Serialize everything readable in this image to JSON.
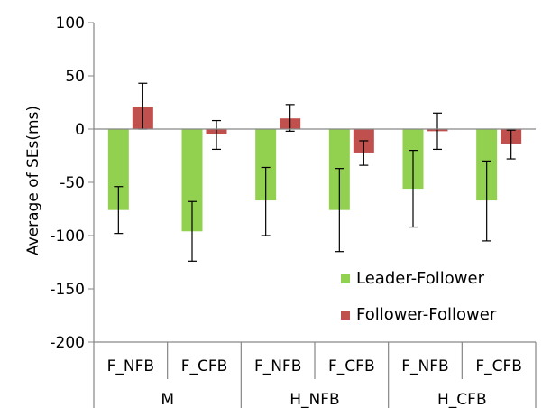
{
  "chart_data": {
    "type": "bar",
    "ylabel": "Average of SEs(ms)",
    "ylim": [
      -200,
      100
    ],
    "ytick_step": 50,
    "grid": false,
    "legend_position": "bottom-right",
    "categories": [
      "F_NFB",
      "F_CFB",
      "F_NFB",
      "F_CFB",
      "F_NFB",
      "F_CFB"
    ],
    "groups": [
      "M",
      "H_NFB",
      "H_CFB"
    ],
    "series": [
      {
        "name": "Leader-Follower",
        "color": "#92d050",
        "values": [
          -76,
          -96,
          -67,
          -76,
          -56,
          -67
        ],
        "error_low": [
          -98,
          -124,
          -100,
          -115,
          -92,
          -105
        ],
        "error_high": [
          -54,
          -68,
          -36,
          -37,
          -20,
          -30
        ]
      },
      {
        "name": "Follower-Follower",
        "color": "#c0504d",
        "values": [
          21,
          -5,
          10,
          -22,
          -2,
          -14
        ],
        "error_low": [
          0,
          -19,
          -2,
          -34,
          -19,
          -28
        ],
        "error_high": [
          43,
          8,
          23,
          -11,
          15,
          -1
        ]
      }
    ]
  }
}
